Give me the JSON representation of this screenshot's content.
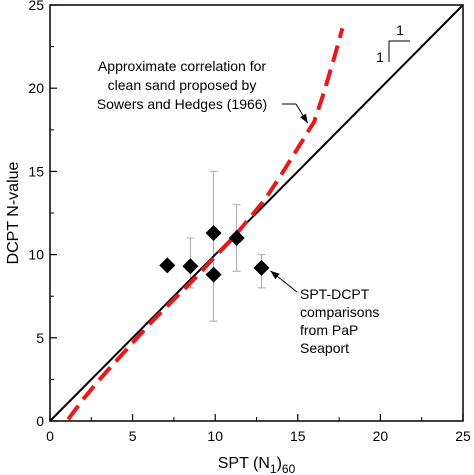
{
  "chart_data": {
    "type": "scatter",
    "xlabel": "SPT (N",
    "xlabel_sub": "1",
    "xlabel_close": ")",
    "xlabel_sub2": "60",
    "ylabel": "DCPT N-value",
    "xlim": [
      0,
      25
    ],
    "ylim": [
      0,
      25
    ],
    "xticks": [
      "0",
      "5",
      "10",
      "15",
      "20",
      "25"
    ],
    "yticks": [
      "0",
      "5",
      "10",
      "15",
      "20",
      "25"
    ],
    "grid": false,
    "series": [
      {
        "type": "line",
        "style": "solid",
        "color": "#000000",
        "x": [
          0,
          25
        ],
        "y": [
          0,
          25
        ]
      },
      {
        "type": "line",
        "style": "dashed",
        "color": "#e8191c",
        "x": [
          1.1,
          2,
          3,
          4,
          5,
          6,
          7,
          8,
          9,
          10,
          11,
          12,
          13,
          14,
          15,
          16,
          16.6,
          17.2,
          17.7
        ],
        "y": [
          0.1,
          1.3,
          2.5,
          3.6,
          4.7,
          5.8,
          6.8,
          7.8,
          8.8,
          9.9,
          10.9,
          12.1,
          13.3,
          14.8,
          16.4,
          18.0,
          19.8,
          21.8,
          23.6
        ]
      },
      {
        "type": "scatter",
        "marker": "diamond",
        "color": "#000000",
        "points": [
          {
            "x": 7.1,
            "y": 9.35,
            "err_low": null,
            "err_high": null
          },
          {
            "x": 8.5,
            "y": 9.3,
            "err_low": 8.0,
            "err_high": 11.0
          },
          {
            "x": 9.9,
            "y": 11.3,
            "err_low": 6.0,
            "err_high": 15.0
          },
          {
            "x": 9.9,
            "y": 8.8,
            "err_low": null,
            "err_high": null
          },
          {
            "x": 11.3,
            "y": 11.0,
            "err_low": 9.0,
            "err_high": 13.0
          },
          {
            "x": 12.8,
            "y": 9.2,
            "err_low": 8.0,
            "err_high": 10.0
          }
        ]
      }
    ],
    "annotations": {
      "correlation": [
        "Approximate correlation for",
        "clean sand proposed by",
        "Sowers and Hedges (1966)"
      ],
      "comparison": [
        "SPT-DCPT",
        "comparisons",
        "from PaP",
        "Seaport"
      ],
      "slope_rise": "1",
      "slope_run": "1"
    }
  }
}
